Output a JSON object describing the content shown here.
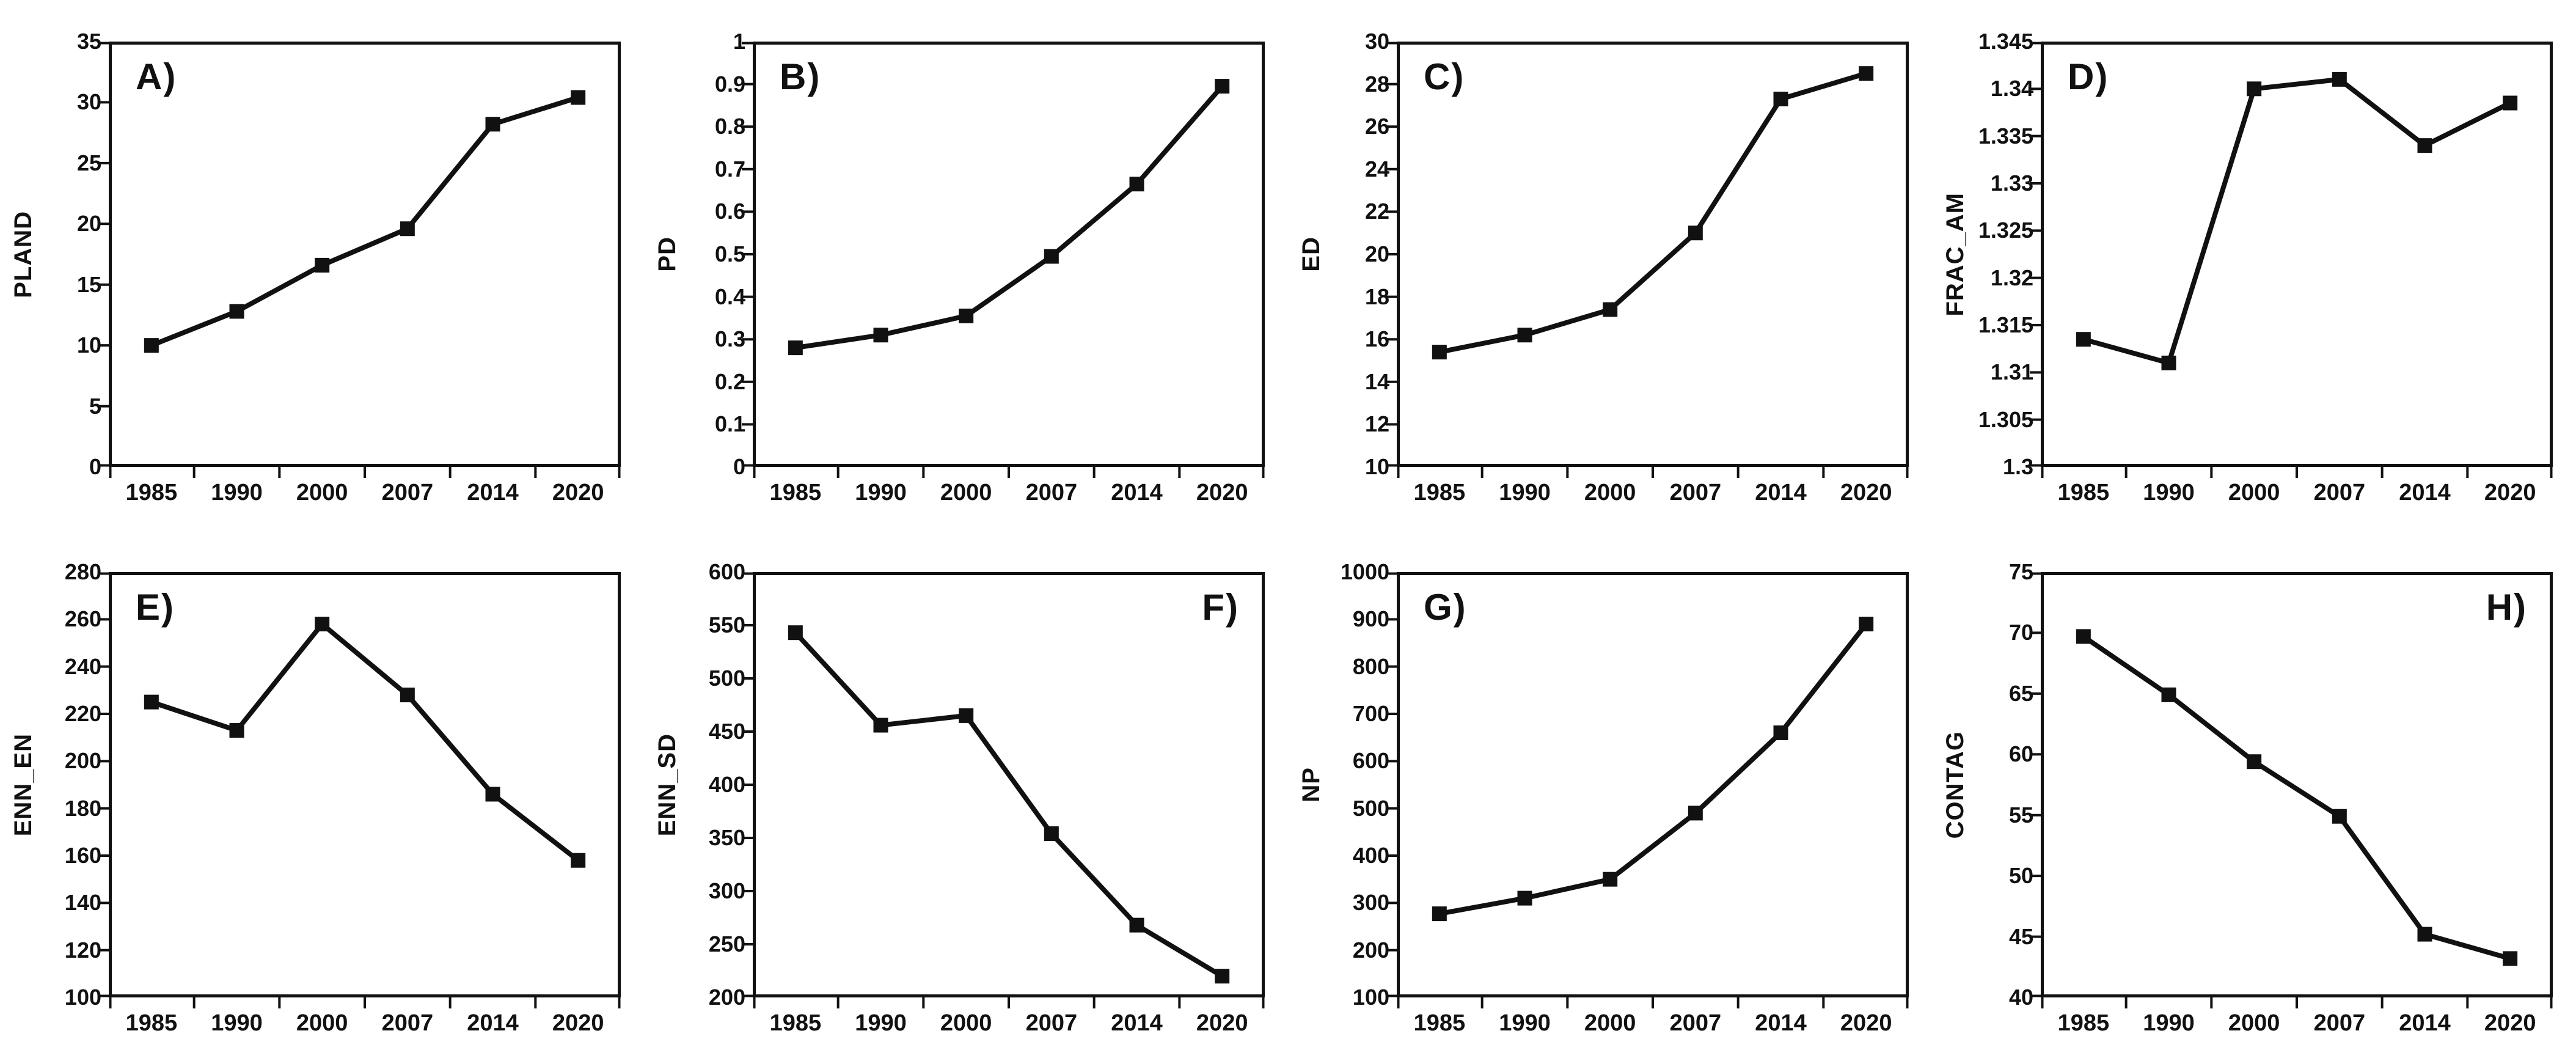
{
  "figure": {
    "background": "#ffffff",
    "series_color": "#111111",
    "axis_color": "#111111",
    "marker_shape": "square"
  },
  "chart_data": [
    {
      "type": "line",
      "panel": "A",
      "label": "A)",
      "label_corner": "left",
      "ylabel": "PLAND",
      "ylim": [
        0,
        35
      ],
      "yticks": [
        0,
        5,
        10,
        15,
        20,
        25,
        30,
        35
      ],
      "categories": [
        "1985",
        "1990",
        "2000",
        "2007",
        "2014",
        "2020"
      ],
      "values": [
        10.0,
        12.8,
        16.6,
        19.6,
        28.2,
        30.4
      ],
      "grid": false,
      "legend": "none"
    },
    {
      "type": "line",
      "panel": "B",
      "label": "B)",
      "label_corner": "left",
      "ylabel": "PD",
      "ylim": [
        0,
        1
      ],
      "yticks": [
        0,
        0.1,
        0.2,
        0.3,
        0.4,
        0.5,
        0.6,
        0.7,
        0.8,
        0.9,
        1
      ],
      "categories": [
        "1985",
        "1990",
        "2000",
        "2007",
        "2014",
        "2020"
      ],
      "values": [
        0.28,
        0.31,
        0.355,
        0.495,
        0.665,
        0.895
      ],
      "grid": false,
      "legend": "none"
    },
    {
      "type": "line",
      "panel": "C",
      "label": "C)",
      "label_corner": "left",
      "ylabel": "ED",
      "ylim": [
        10,
        30
      ],
      "yticks": [
        10,
        12,
        14,
        16,
        18,
        20,
        22,
        24,
        26,
        28,
        30
      ],
      "categories": [
        "1985",
        "1990",
        "2000",
        "2007",
        "2014",
        "2020"
      ],
      "values": [
        15.4,
        16.2,
        17.4,
        21.0,
        27.3,
        28.5
      ],
      "grid": false,
      "legend": "none"
    },
    {
      "type": "line",
      "panel": "D",
      "label": "D)",
      "label_corner": "left",
      "ylabel": "FRAC_AM",
      "ylim": [
        1.3,
        1.345
      ],
      "yticks": [
        1.3,
        1.305,
        1.31,
        1.315,
        1.32,
        1.325,
        1.33,
        1.335,
        1.34,
        1.345
      ],
      "categories": [
        "1985",
        "1990",
        "2000",
        "2007",
        "2014",
        "2020"
      ],
      "values": [
        1.3135,
        1.311,
        1.34,
        1.341,
        1.334,
        1.3385
      ],
      "grid": false,
      "legend": "none"
    },
    {
      "type": "line",
      "panel": "E",
      "label": "E)",
      "label_corner": "left",
      "ylabel": "ENN_EN",
      "ylim": [
        100,
        280
      ],
      "yticks": [
        100,
        120,
        140,
        160,
        180,
        200,
        220,
        240,
        260,
        280
      ],
      "categories": [
        "1985",
        "1990",
        "2000",
        "2007",
        "2014",
        "2020"
      ],
      "values": [
        225,
        213,
        258,
        228,
        186,
        158
      ],
      "grid": false,
      "legend": "none"
    },
    {
      "type": "line",
      "panel": "F",
      "label": "F)",
      "label_corner": "right",
      "ylabel": "ENN_SD",
      "ylim": [
        200,
        600
      ],
      "yticks": [
        200,
        250,
        300,
        350,
        400,
        450,
        500,
        550,
        600
      ],
      "categories": [
        "1985",
        "1990",
        "2000",
        "2007",
        "2014",
        "2020"
      ],
      "values": [
        543,
        456,
        465,
        354,
        268,
        220
      ],
      "grid": false,
      "legend": "none"
    },
    {
      "type": "line",
      "panel": "G",
      "label": "G)",
      "label_corner": "left",
      "ylabel": "NP",
      "ylim": [
        100,
        1000
      ],
      "yticks": [
        100,
        200,
        300,
        400,
        500,
        600,
        700,
        800,
        900,
        1000
      ],
      "categories": [
        "1985",
        "1990",
        "2000",
        "2007",
        "2014",
        "2020"
      ],
      "values": [
        277,
        310,
        350,
        490,
        660,
        890
      ],
      "grid": false,
      "legend": "none"
    },
    {
      "type": "line",
      "panel": "H",
      "label": "H)",
      "label_corner": "right",
      "ylabel": "CONTAG",
      "ylim": [
        40,
        75
      ],
      "yticks": [
        40,
        45,
        50,
        55,
        60,
        65,
        70,
        75
      ],
      "categories": [
        "1985",
        "1990",
        "2000",
        "2007",
        "2014",
        "2020"
      ],
      "values": [
        69.7,
        64.9,
        59.4,
        54.9,
        45.2,
        43.2
      ],
      "grid": false,
      "legend": "none"
    }
  ]
}
